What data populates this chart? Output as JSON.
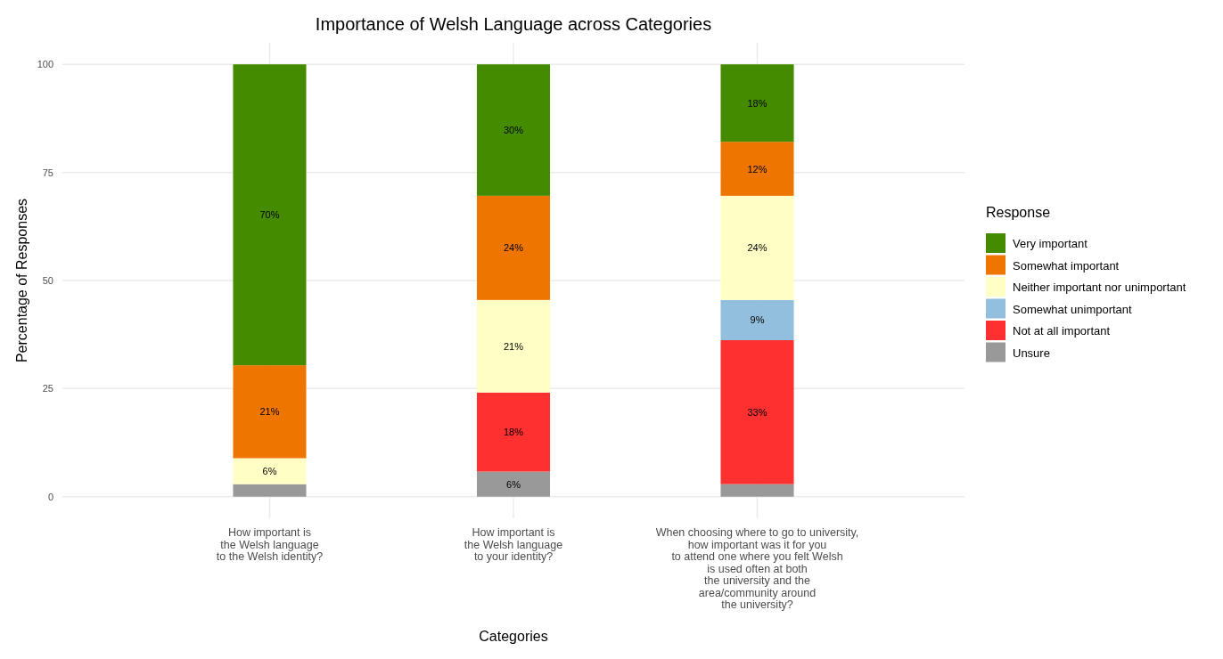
{
  "chart_data": {
    "type": "bar",
    "stacked": true,
    "title": "Importance of Welsh Language across Categories",
    "xlabel": "Categories",
    "ylabel": "Percentage of Responses",
    "legend_title": "Response",
    "legend": "right",
    "categories": [
      "How important is\nthe Welsh language\nto the Welsh identity?",
      "How important is\nthe Welsh language\nto your identity?",
      "When choosing where to go to university,\nhow important was it for you\nto attend one where you felt Welsh\nis used often at both\nthe university and the\narea/community around\nthe university?"
    ],
    "series": [
      {
        "name": "Unsure",
        "color": "#999999",
        "values": [
          2.9,
          5.8,
          2.9
        ],
        "value_labels": [
          null,
          "6%",
          null
        ]
      },
      {
        "name": "Not at all important",
        "color": "#ff3030",
        "values": [
          null,
          18.3,
          33.3
        ],
        "value_labels": [
          null,
          "18%",
          "33%"
        ]
      },
      {
        "name": "Somewhat unimportant",
        "color": "#92bfdd",
        "values": [
          null,
          null,
          9.3
        ],
        "value_labels": [
          null,
          null,
          "9%"
        ]
      },
      {
        "name": "Neither important nor unimportant",
        "color": "#ffffc5",
        "values": [
          6.0,
          21.4,
          24.1
        ],
        "value_labels": [
          "6%",
          "21%",
          "24%"
        ]
      },
      {
        "name": "Somewhat important",
        "color": "#ee7600",
        "values": [
          21.5,
          24.1,
          12.5
        ],
        "value_labels": [
          "21%",
          "24%",
          "12%"
        ]
      },
      {
        "name": "Very important",
        "color": "#458b00",
        "values": [
          69.6,
          30.4,
          17.9
        ],
        "value_labels": [
          "70%",
          "30%",
          "18%"
        ]
      }
    ],
    "ylim": [
      -5,
      105
    ],
    "yticks": [
      0,
      25,
      50,
      75,
      100
    ],
    "grid": true
  }
}
